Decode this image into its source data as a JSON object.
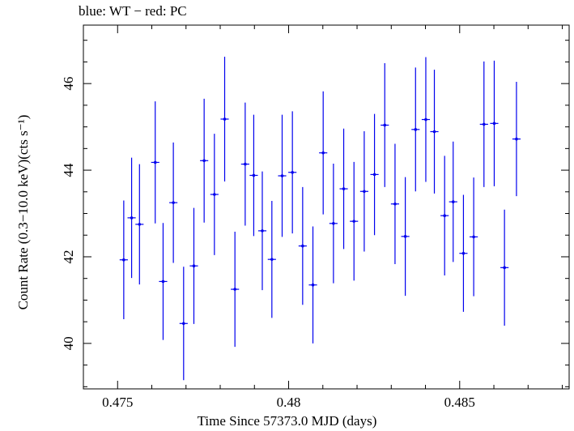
{
  "chart_data": {
    "type": "scatter",
    "title": "blue: WT − red: PC",
    "xlabel": "Time Since 57373.0 MJD (days)",
    "ylabel": "Count Rate (0.3−10.0 keV)(cts s⁻¹)",
    "xlim": [
      0.474,
      0.4882
    ],
    "ylim": [
      38.95,
      47.35
    ],
    "xticks": [
      0.475,
      0.48,
      0.485
    ],
    "xtick_labels": [
      "0.475",
      "0.48",
      "0.485"
    ],
    "yticks": [
      40,
      42,
      44,
      46
    ],
    "ytick_labels": [
      "40",
      "42",
      "44",
      "46"
    ],
    "grid": false,
    "series": [
      {
        "color": "#0000ee",
        "points": [
          {
            "x": 0.47518,
            "y": 41.93,
            "xerr": 0.00012,
            "yerr": 1.37
          },
          {
            "x": 0.47541,
            "y": 42.9,
            "xerr": 0.00012,
            "yerr": 1.39
          },
          {
            "x": 0.47564,
            "y": 42.75,
            "xerr": 0.00012,
            "yerr": 1.39
          },
          {
            "x": 0.4761,
            "y": 44.18,
            "xerr": 0.00012,
            "yerr": 1.41
          },
          {
            "x": 0.47633,
            "y": 41.43,
            "xerr": 0.00012,
            "yerr": 1.35
          },
          {
            "x": 0.47663,
            "y": 43.25,
            "xerr": 0.00012,
            "yerr": 1.39
          },
          {
            "x": 0.47693,
            "y": 40.46,
            "xerr": 0.00012,
            "yerr": 1.31
          },
          {
            "x": 0.47723,
            "y": 41.79,
            "xerr": 0.00012,
            "yerr": 1.34
          },
          {
            "x": 0.47753,
            "y": 44.22,
            "xerr": 0.00012,
            "yerr": 1.43
          },
          {
            "x": 0.47783,
            "y": 43.44,
            "xerr": 0.00012,
            "yerr": 1.4
          },
          {
            "x": 0.47813,
            "y": 45.18,
            "xerr": 0.00012,
            "yerr": 1.44
          },
          {
            "x": 0.47843,
            "y": 41.25,
            "xerr": 0.00012,
            "yerr": 1.33
          },
          {
            "x": 0.47873,
            "y": 44.14,
            "xerr": 0.00012,
            "yerr": 1.42
          },
          {
            "x": 0.47898,
            "y": 43.88,
            "xerr": 0.00012,
            "yerr": 1.4
          },
          {
            "x": 0.47923,
            "y": 42.6,
            "xerr": 0.00012,
            "yerr": 1.37
          },
          {
            "x": 0.47951,
            "y": 41.94,
            "xerr": 0.00012,
            "yerr": 1.35
          },
          {
            "x": 0.47981,
            "y": 43.87,
            "xerr": 0.00012,
            "yerr": 1.41
          },
          {
            "x": 0.48011,
            "y": 43.95,
            "xerr": 0.00012,
            "yerr": 1.41
          },
          {
            "x": 0.48041,
            "y": 42.25,
            "xerr": 0.00012,
            "yerr": 1.36
          },
          {
            "x": 0.48071,
            "y": 41.35,
            "xerr": 0.00012,
            "yerr": 1.35
          },
          {
            "x": 0.48101,
            "y": 44.4,
            "xerr": 0.00012,
            "yerr": 1.42
          },
          {
            "x": 0.48131,
            "y": 42.77,
            "xerr": 0.00012,
            "yerr": 1.38
          },
          {
            "x": 0.48161,
            "y": 43.57,
            "xerr": 0.00012,
            "yerr": 1.39
          },
          {
            "x": 0.48191,
            "y": 42.82,
            "xerr": 0.00012,
            "yerr": 1.37
          },
          {
            "x": 0.48221,
            "y": 43.51,
            "xerr": 0.00012,
            "yerr": 1.39
          },
          {
            "x": 0.48251,
            "y": 43.9,
            "xerr": 0.00012,
            "yerr": 1.4
          },
          {
            "x": 0.48281,
            "y": 45.04,
            "xerr": 0.00012,
            "yerr": 1.43
          },
          {
            "x": 0.48311,
            "y": 43.22,
            "xerr": 0.00012,
            "yerr": 1.39
          },
          {
            "x": 0.48341,
            "y": 42.47,
            "xerr": 0.00012,
            "yerr": 1.37
          },
          {
            "x": 0.48371,
            "y": 44.94,
            "xerr": 0.00012,
            "yerr": 1.43
          },
          {
            "x": 0.48401,
            "y": 45.17,
            "xerr": 0.00012,
            "yerr": 1.44
          },
          {
            "x": 0.48426,
            "y": 44.89,
            "xerr": 0.00012,
            "yerr": 1.43
          },
          {
            "x": 0.48456,
            "y": 42.95,
            "xerr": 0.00012,
            "yerr": 1.38
          },
          {
            "x": 0.48481,
            "y": 43.27,
            "xerr": 0.00012,
            "yerr": 1.39
          },
          {
            "x": 0.48511,
            "y": 42.08,
            "xerr": 0.00012,
            "yerr": 1.35
          },
          {
            "x": 0.48541,
            "y": 42.46,
            "xerr": 0.00012,
            "yerr": 1.37
          },
          {
            "x": 0.48571,
            "y": 45.06,
            "xerr": 0.00012,
            "yerr": 1.45
          },
          {
            "x": 0.48601,
            "y": 45.08,
            "xerr": 0.00012,
            "yerr": 1.45
          },
          {
            "x": 0.48631,
            "y": 41.75,
            "xerr": 0.00012,
            "yerr": 1.34
          },
          {
            "x": 0.48666,
            "y": 44.72,
            "xerr": 0.00012,
            "yerr": 1.32
          }
        ]
      }
    ]
  }
}
